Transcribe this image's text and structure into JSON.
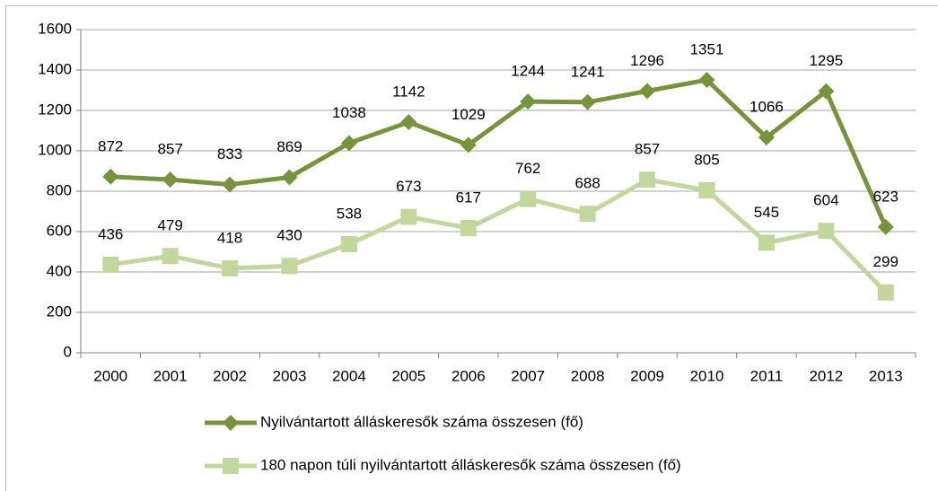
{
  "chart_data": {
    "type": "line",
    "categories": [
      "2000",
      "2001",
      "2002",
      "2003",
      "2004",
      "2005",
      "2006",
      "2007",
      "2008",
      "2009",
      "2010",
      "2011",
      "2012",
      "2013"
    ],
    "series": [
      {
        "name": "Nyilvántartott álláskeresők száma összesen (fő)",
        "color": "#77933c",
        "marker": "diamond",
        "values": [
          872,
          857,
          833,
          869,
          1038,
          1142,
          1029,
          1244,
          1241,
          1296,
          1351,
          1066,
          1295,
          623
        ]
      },
      {
        "name": "180 napon túli nyilvántartott álláskeresők száma összesen (fő)",
        "color": "#c3d69b",
        "marker": "square",
        "values": [
          436,
          479,
          418,
          430,
          538,
          673,
          617,
          762,
          688,
          857,
          805,
          545,
          604,
          299
        ]
      }
    ],
    "ylim": [
      0,
      1600
    ],
    "yticks": [
      0,
      200,
      400,
      600,
      800,
      1000,
      1200,
      1400,
      1600
    ],
    "grid": true,
    "legend": "bottom"
  }
}
